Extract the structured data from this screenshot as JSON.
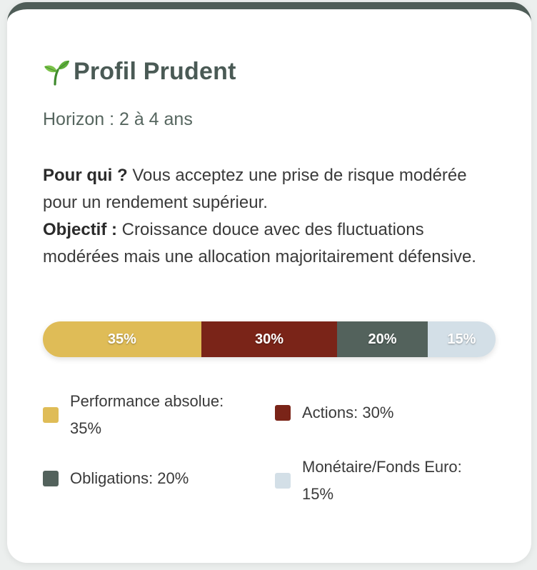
{
  "profile": {
    "title": "Profil Prudent",
    "icon": "sprout-icon",
    "horizon": "Horizon : 2 à 4 ans"
  },
  "description": {
    "pour_qui_label": "Pour qui ?",
    "pour_qui_text": " Vous acceptez une prise de risque modérée pour un rendement supérieur.",
    "objectif_label": "Objectif :",
    "objectif_text": " Croissance douce avec des fluctuations modérées mais une allocation majoritairement défensive."
  },
  "allocation": [
    {
      "name": "Performance absolue",
      "value": 35,
      "label": "35%",
      "legend": "Performance absolue: 35%",
      "color": "#dfbc57"
    },
    {
      "name": "Actions",
      "value": 30,
      "label": "30%",
      "legend": "Actions: 30%",
      "color": "#7a2418"
    },
    {
      "name": "Obligations",
      "value": 20,
      "label": "20%",
      "legend": "Obligations: 20%",
      "color": "#53625c"
    },
    {
      "name": "Monétaire/Fonds Euro",
      "value": 15,
      "label": "15%",
      "legend": "Monétaire/Fonds Euro: 15%",
      "color": "#d3dfe7"
    }
  ]
}
